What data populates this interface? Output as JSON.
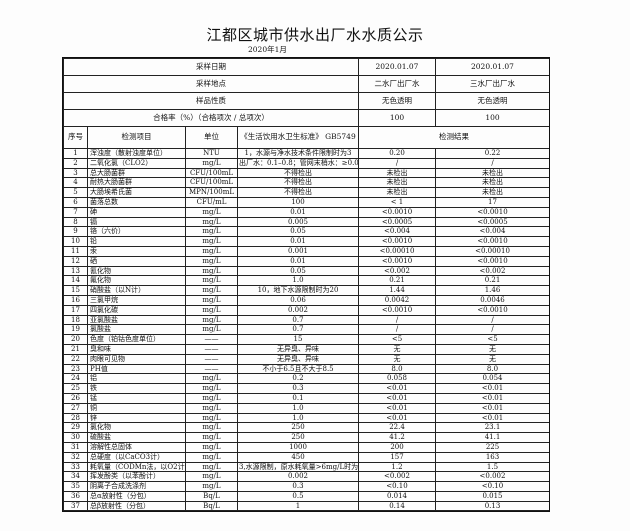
{
  "title": "江都区城市供水出厂水水质公示",
  "period": "2020年1月",
  "header": {
    "sampling_date": {
      "label": "采样日期",
      "values": [
        "2020.01.07",
        "2020.01.07"
      ]
    },
    "sampling_site": {
      "label": "采样地点",
      "values": [
        "二水厂出厂水",
        "三水厂出厂水"
      ]
    },
    "sample_nature": {
      "label": "样品性质",
      "values": [
        "无色透明",
        "无色透明"
      ]
    },
    "pass_rate": {
      "label": "合格率（%）（合格项次 / 总项次）",
      "values": [
        "100",
        "100"
      ]
    }
  },
  "columns": {
    "seq": "序号",
    "item": "检测项目",
    "unit": "单位",
    "standard": "《生活饮用水卫生标准》 GB5749",
    "result": "检测结果"
  },
  "rows": [
    {
      "no": "1",
      "item": "浑浊度（散射浊度单位）",
      "unit": "NTU",
      "std": "1，水源与净水技术条件限制时为3",
      "r1": "0.20",
      "r2": "0.22"
    },
    {
      "no": "2",
      "item": "二氧化氯（CLO2）",
      "unit": "mg/L",
      "std": "出厂水：0.1–0.8；管网末梢水：≥0.02",
      "r1": "/",
      "r2": "/"
    },
    {
      "no": "3",
      "item": "总大肠菌群",
      "unit": "CFU/100mL",
      "std": "不得检出",
      "r1": "未检出",
      "r2": "未检出"
    },
    {
      "no": "4",
      "item": "耐热大肠菌群",
      "unit": "CFU/100mL",
      "std": "不得检出",
      "r1": "未检出",
      "r2": "未检出"
    },
    {
      "no": "5",
      "item": "大肠埃希氏菌",
      "unit": "MPN/100mL",
      "std": "不得检出",
      "r1": "未检出",
      "r2": "未检出"
    },
    {
      "no": "6",
      "item": "菌落总数",
      "unit": "CFU/mL",
      "std": "100",
      "r1": "< 1",
      "r2": "17"
    },
    {
      "no": "7",
      "item": "砷",
      "unit": "mg/L",
      "std": "0.01",
      "r1": "<0.0010",
      "r2": "<0.0010"
    },
    {
      "no": "8",
      "item": "镉",
      "unit": "mg/L",
      "std": "0.005",
      "r1": "<0.0005",
      "r2": "<0.0005"
    },
    {
      "no": "9",
      "item": "铬（六价）",
      "unit": "mg/L",
      "std": "0.05",
      "r1": "<0.004",
      "r2": "<0.004"
    },
    {
      "no": "10",
      "item": "铅",
      "unit": "mg/L",
      "std": "0.01",
      "r1": "<0.0010",
      "r2": "<0.0010"
    },
    {
      "no": "11",
      "item": "汞",
      "unit": "mg/L",
      "std": "0.001",
      "r1": "<0.00010",
      "r2": "<0.00010"
    },
    {
      "no": "12",
      "item": "硒",
      "unit": "mg/L",
      "std": "0.01",
      "r1": "<0.0010",
      "r2": "<0.0010"
    },
    {
      "no": "13",
      "item": "氰化物",
      "unit": "mg/L",
      "std": "0.05",
      "r1": "<0.002",
      "r2": "<0.002"
    },
    {
      "no": "14",
      "item": "氟化物",
      "unit": "mg/L",
      "std": "1.0",
      "r1": "0.21",
      "r2": "0.21"
    },
    {
      "no": "15",
      "item": "硝酸盐（以N计）",
      "unit": "mg/L",
      "std": "10，地下水源限制时为20",
      "r1": "1.44",
      "r2": "1.46"
    },
    {
      "no": "16",
      "item": "三氯甲烷",
      "unit": "mg/L",
      "std": "0.06",
      "r1": "0.0042",
      "r2": "0.0046"
    },
    {
      "no": "17",
      "item": "四氯化碳",
      "unit": "mg/L",
      "std": "0.002",
      "r1": "<0.0010",
      "r2": "<0.0010"
    },
    {
      "no": "18",
      "item": "亚氯酸盐",
      "unit": "mg/L",
      "std": "0.7",
      "r1": "/",
      "r2": "/"
    },
    {
      "no": "19",
      "item": "氯酸盐",
      "unit": "mg/L",
      "std": "0.7",
      "r1": "/",
      "r2": "/"
    },
    {
      "no": "20",
      "item": "色度（铂钴色度单位）",
      "unit": "——",
      "std": "15",
      "r1": "<5",
      "r2": "<5"
    },
    {
      "no": "21",
      "item": "臭和味",
      "unit": "——",
      "std": "无异臭、异味",
      "r1": "无",
      "r2": "无"
    },
    {
      "no": "22",
      "item": "肉眼可见物",
      "unit": "——",
      "std": "无异臭、异味",
      "r1": "无",
      "r2": "无"
    },
    {
      "no": "23",
      "item": "PH值",
      "unit": "——",
      "std": "不小于6.5且不大于8.5",
      "r1": "8.0",
      "r2": "8.0"
    },
    {
      "no": "24",
      "item": "铝",
      "unit": "mg/L",
      "std": "0.2",
      "r1": "0.058",
      "r2": "0.054"
    },
    {
      "no": "25",
      "item": "铁",
      "unit": "mg/L",
      "std": "0.3",
      "r1": "<0.01",
      "r2": "<0.01"
    },
    {
      "no": "26",
      "item": "锰",
      "unit": "mg/L",
      "std": "0.1",
      "r1": "<0.01",
      "r2": "<0.01"
    },
    {
      "no": "27",
      "item": "铜",
      "unit": "mg/L",
      "std": "1.0",
      "r1": "<0.01",
      "r2": "<0.01"
    },
    {
      "no": "28",
      "item": "锌",
      "unit": "mg/L",
      "std": "1.0",
      "r1": "<0.01",
      "r2": "<0.01"
    },
    {
      "no": "29",
      "item": "氯化物",
      "unit": "mg/L",
      "std": "250",
      "r1": "22.4",
      "r2": "23.1"
    },
    {
      "no": "30",
      "item": "硫酸盐",
      "unit": "mg/L",
      "std": "250",
      "r1": "41.2",
      "r2": "41.1"
    },
    {
      "no": "31",
      "item": "溶解性总固体",
      "unit": "mg/L",
      "std": "1000",
      "r1": "200",
      "r2": "225"
    },
    {
      "no": "32",
      "item": "总硬度（以CaCO3计）",
      "unit": "mg/L",
      "std": "450",
      "r1": "157",
      "r2": "163"
    },
    {
      "no": "33",
      "item": "耗氧量（CODMn法，以O2计）",
      "unit": "mg/L",
      "std": "3,水源限制，原水耗氧量>6mg/L时为5",
      "r1": "1.2",
      "r2": "1.5"
    },
    {
      "no": "34",
      "item": "挥发酚类（以苯酚计）",
      "unit": "mg/L",
      "std": "0.002",
      "r1": "<0.002",
      "r2": "<0.002"
    },
    {
      "no": "35",
      "item": "阴离子合成洗涤剂",
      "unit": "mg/L",
      "std": "0.3",
      "r1": "<0.10",
      "r2": "<0.10"
    },
    {
      "no": "36",
      "item": "总α放射性（分包）",
      "unit": "Bq/L",
      "std": "0.5",
      "r1": "0.014",
      "r2": "0.015"
    },
    {
      "no": "37",
      "item": "总β放射性（分包）",
      "unit": "Bq/L",
      "std": "1",
      "r1": "0.14",
      "r2": "0.13"
    }
  ]
}
